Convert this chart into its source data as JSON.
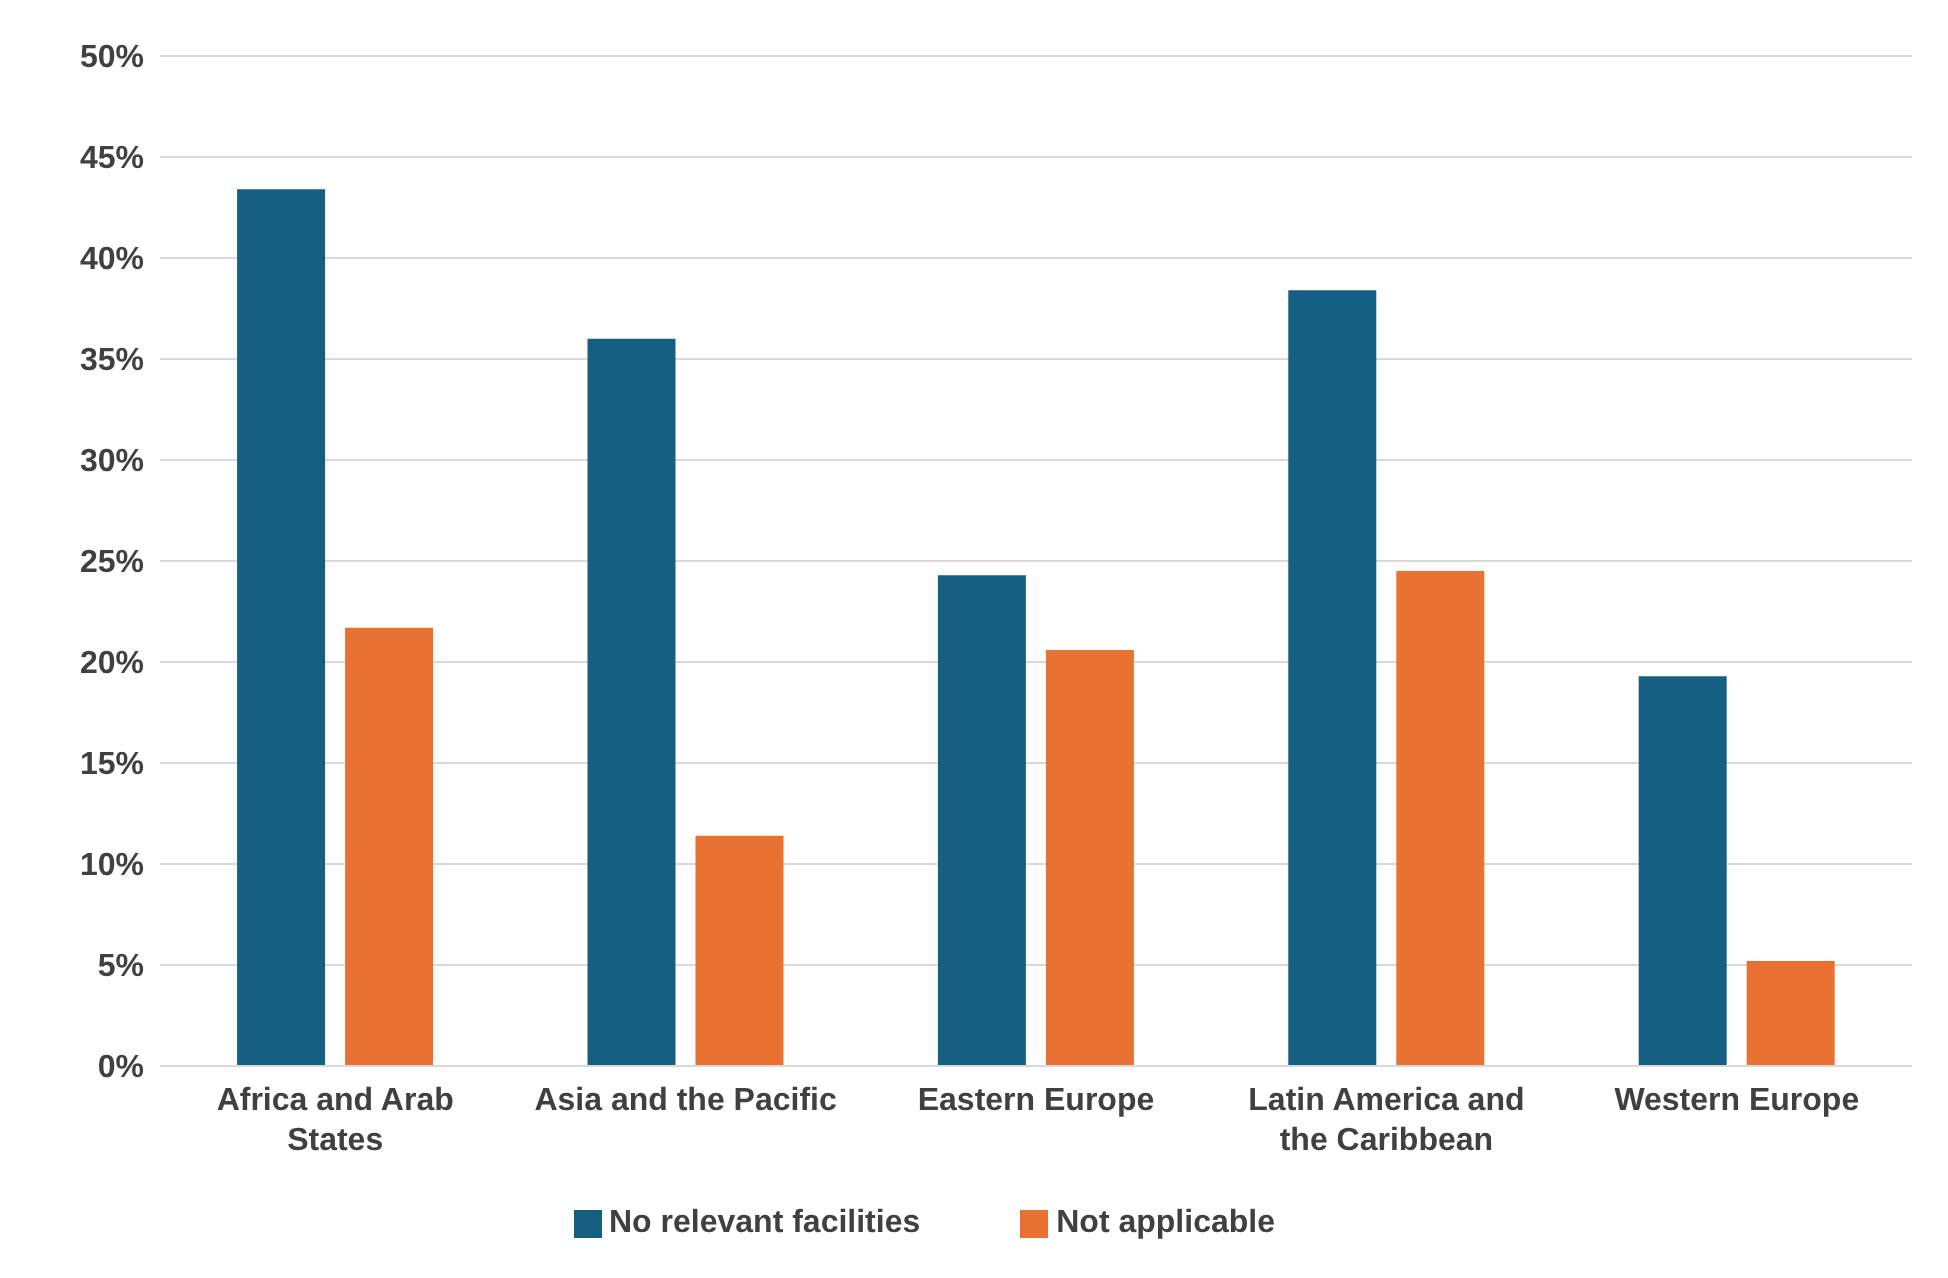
{
  "chart_data": {
    "type": "bar",
    "categories": [
      "Africa and Arab States",
      "Asia and the Pacific",
      "Eastern Europe",
      "Latin America and the Caribbean",
      "Western Europe"
    ],
    "series": [
      {
        "name": "No relevant facilities",
        "color": "#155f82",
        "values": [
          43.4,
          36.0,
          24.3,
          38.4,
          19.3
        ]
      },
      {
        "name": "Not applicable",
        "color": "#e97132",
        "values": [
          21.7,
          11.4,
          20.6,
          24.5,
          5.2
        ]
      }
    ],
    "ylim": [
      0,
      50
    ],
    "yticks": [
      {
        "value": 0,
        "label": "0%"
      },
      {
        "value": 5,
        "label": "5%"
      },
      {
        "value": 10,
        "label": "10%"
      },
      {
        "value": 15,
        "label": "15%"
      },
      {
        "value": 20,
        "label": "20%"
      },
      {
        "value": 25,
        "label": "25%"
      },
      {
        "value": 30,
        "label": "30%"
      },
      {
        "value": 35,
        "label": "35%"
      },
      {
        "value": 40,
        "label": "40%"
      },
      {
        "value": 45,
        "label": "45%"
      },
      {
        "value": 50,
        "label": "50%"
      }
    ],
    "grid": "y",
    "legend": "bottom"
  }
}
